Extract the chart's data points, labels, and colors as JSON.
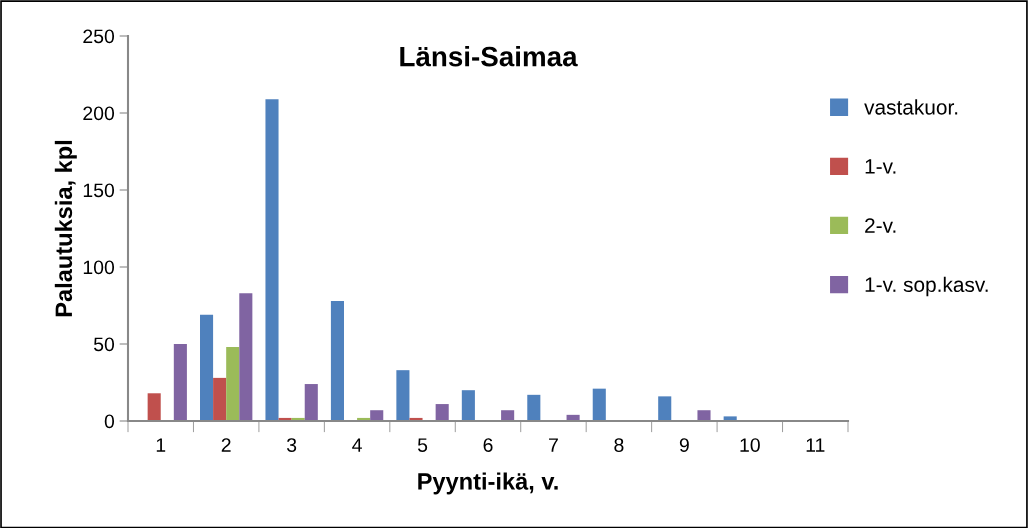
{
  "chart_data": {
    "type": "bar",
    "title": "Länsi-Saimaa",
    "xlabel": "Pyynti-ikä, v.",
    "ylabel": "Palautuksia, kpl",
    "categories": [
      "1",
      "2",
      "3",
      "4",
      "5",
      "6",
      "7",
      "8",
      "9",
      "10",
      "11"
    ],
    "series": [
      {
        "name": "vastakuor.",
        "color": "#4f81bd",
        "values": [
          null,
          69,
          209,
          78,
          33,
          20,
          17,
          21,
          16,
          3,
          null
        ]
      },
      {
        "name": "1-v.",
        "color": "#c0504d",
        "values": [
          18,
          28,
          2,
          null,
          2,
          null,
          null,
          null,
          null,
          null,
          null
        ]
      },
      {
        "name": "2-v.",
        "color": "#9bbb59",
        "values": [
          null,
          48,
          2,
          2,
          null,
          null,
          null,
          null,
          null,
          null,
          null
        ]
      },
      {
        "name": "1-v. sop.kasv.",
        "color": "#8064a2",
        "values": [
          50,
          83,
          24,
          7,
          11,
          7,
          4,
          null,
          7,
          null,
          null
        ]
      }
    ],
    "ylim": [
      0,
      250
    ],
    "yticks": [
      0,
      50,
      100,
      150,
      200,
      250
    ],
    "grid": false,
    "legend": "right"
  }
}
